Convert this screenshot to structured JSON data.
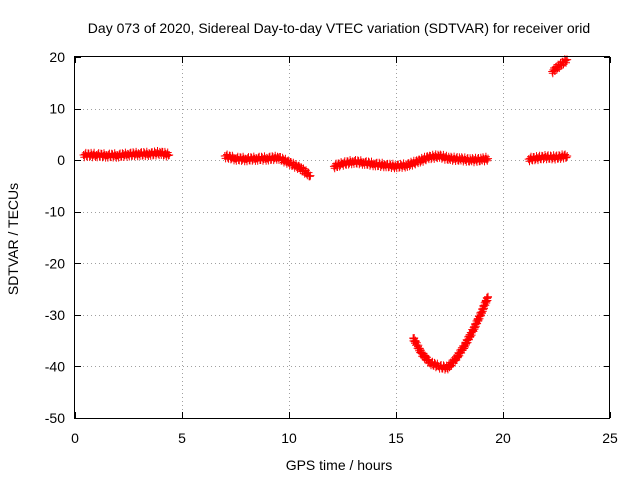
{
  "chart_data": {
    "type": "scatter",
    "title": "Day 073 of 2020, Sidereal Day-to-day VTEC variation (SDTVAR) for receiver orid",
    "xlabel": "GPS time / hours",
    "ylabel": "SDTVAR / TECUs",
    "xlim": [
      0,
      25
    ],
    "ylim": [
      -50,
      20
    ],
    "xticks": [
      0,
      5,
      10,
      15,
      20,
      25
    ],
    "yticks": [
      20,
      10,
      0,
      -10,
      -20,
      -30,
      -40,
      -50
    ],
    "grid": true,
    "marker": "plus",
    "series": [
      {
        "name": "SDTVAR",
        "color": "#ff0000",
        "segments": [
          {
            "x": [
              0.4,
              1.0,
              1.5,
              2.0,
              2.5,
              3.0,
              3.5,
              4.0,
              4.4
            ],
            "y": [
              1.0,
              1.0,
              0.9,
              0.9,
              1.1,
              1.2,
              1.2,
              1.4,
              1.0
            ]
          },
          {
            "x": [
              7.0,
              7.5,
              8.0,
              8.5,
              9.0,
              9.5,
              10.0,
              10.5,
              11.0
            ],
            "y": [
              0.8,
              0.3,
              0.2,
              0.3,
              0.3,
              0.5,
              -0.5,
              -1.5,
              -3.0
            ]
          },
          {
            "x": [
              12.1,
              12.5,
              13.0,
              13.5,
              14.0,
              14.5,
              15.0,
              15.5,
              16.0,
              16.5,
              17.0,
              17.5,
              18.0,
              18.5,
              19.0,
              19.3
            ],
            "y": [
              -1.2,
              -0.7,
              -0.3,
              -0.5,
              -0.8,
              -1.0,
              -1.2,
              -1.0,
              -0.3,
              0.5,
              0.8,
              0.3,
              0.2,
              0.0,
              0.1,
              0.3
            ]
          },
          {
            "x": [
              21.2,
              21.6,
              22.0,
              22.4,
              22.8,
              23.0
            ],
            "y": [
              0.2,
              0.4,
              0.6,
              0.5,
              0.7,
              0.8
            ]
          },
          {
            "x": [
              15.8,
              16.2,
              16.6,
              17.0,
              17.4,
              17.8,
              18.2,
              18.6,
              19.0,
              19.3
            ],
            "y": [
              -34.5,
              -37.5,
              -39.3,
              -40.0,
              -40.3,
              -38.5,
              -36.0,
              -33.0,
              -29.5,
              -26.5
            ]
          },
          {
            "x": [
              22.3,
              22.6,
              23.0
            ],
            "y": [
              17.2,
              18.2,
              19.5
            ]
          }
        ]
      }
    ]
  }
}
